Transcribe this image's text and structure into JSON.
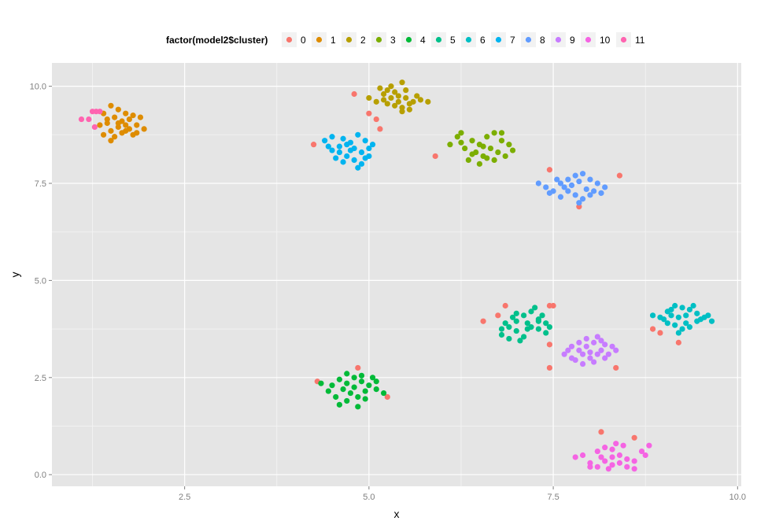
{
  "chart_data": {
    "type": "scatter",
    "xlabel": "x",
    "ylabel": "y",
    "xlim": [
      0.7,
      10.05
    ],
    "ylim": [
      -0.3,
      10.6
    ],
    "x_ticks": [
      2.5,
      5.0,
      7.5,
      10.0
    ],
    "y_ticks": [
      0.0,
      2.5,
      5.0,
      7.5,
      10.0
    ],
    "x_tick_labels": [
      "2.5",
      "5.0",
      "7.5",
      "10.0"
    ],
    "y_tick_labels": [
      "0.0",
      "2.5",
      "5.0",
      "7.5",
      "10.0"
    ],
    "grid": true,
    "legend": {
      "position": "top",
      "title": "factor(model2$cluster)",
      "entries": [
        "0",
        "1",
        "2",
        "3",
        "4",
        "5",
        "6",
        "7",
        "8",
        "9",
        "10",
        "11"
      ]
    },
    "series": [
      {
        "name": "0",
        "color": "#F8766D",
        "points": [
          [
            4.8,
            9.8
          ],
          [
            5.0,
            9.3
          ],
          [
            5.1,
            9.15
          ],
          [
            5.15,
            8.9
          ],
          [
            4.25,
            8.5
          ],
          [
            5.9,
            8.2
          ],
          [
            7.45,
            7.85
          ],
          [
            8.4,
            7.7
          ],
          [
            7.85,
            6.9
          ],
          [
            4.3,
            2.4
          ],
          [
            4.85,
            2.75
          ],
          [
            5.25,
            2.0
          ],
          [
            6.85,
            4.35
          ],
          [
            7.45,
            4.35
          ],
          [
            7.5,
            4.35
          ],
          [
            6.75,
            4.1
          ],
          [
            6.55,
            3.95
          ],
          [
            7.45,
            3.35
          ],
          [
            7.45,
            2.75
          ],
          [
            8.35,
            2.75
          ],
          [
            8.85,
            3.75
          ],
          [
            8.95,
            3.65
          ],
          [
            9.2,
            3.4
          ],
          [
            8.15,
            1.1
          ],
          [
            8.6,
            0.95
          ]
        ]
      },
      {
        "name": "1",
        "color": "#DE8C00",
        "points": [
          [
            1.5,
            9.5
          ],
          [
            1.6,
            9.4
          ],
          [
            1.4,
            9.3
          ],
          [
            1.7,
            9.3
          ],
          [
            1.8,
            9.25
          ],
          [
            1.55,
            9.2
          ],
          [
            1.65,
            9.1
          ],
          [
            1.45,
            9.05
          ],
          [
            1.85,
            9.0
          ],
          [
            1.95,
            8.9
          ],
          [
            1.5,
            8.85
          ],
          [
            1.7,
            8.85
          ],
          [
            1.6,
            8.95
          ],
          [
            1.75,
            9.15
          ],
          [
            1.4,
            8.75
          ],
          [
            1.55,
            8.7
          ],
          [
            1.8,
            8.75
          ],
          [
            1.5,
            8.6
          ],
          [
            1.65,
            8.8
          ],
          [
            1.9,
            9.2
          ],
          [
            1.35,
            9.0
          ],
          [
            1.6,
            9.05
          ],
          [
            1.7,
            9.0
          ],
          [
            1.45,
            9.15
          ],
          [
            1.75,
            8.9
          ],
          [
            1.85,
            8.8
          ]
        ]
      },
      {
        "name": "2",
        "color": "#B79F00",
        "points": [
          [
            5.15,
            9.95
          ],
          [
            5.3,
            10.0
          ],
          [
            5.45,
            10.1
          ],
          [
            5.2,
            9.8
          ],
          [
            5.35,
            9.85
          ],
          [
            5.5,
            9.7
          ],
          [
            5.6,
            9.6
          ],
          [
            5.4,
            9.6
          ],
          [
            5.25,
            9.55
          ],
          [
            5.45,
            9.45
          ],
          [
            5.55,
            9.4
          ],
          [
            5.1,
            9.6
          ],
          [
            5.3,
            9.7
          ],
          [
            5.65,
            9.75
          ],
          [
            5.8,
            9.6
          ],
          [
            5.0,
            9.7
          ],
          [
            5.5,
            9.9
          ],
          [
            5.35,
            9.5
          ],
          [
            5.2,
            9.65
          ],
          [
            5.55,
            9.55
          ],
          [
            5.7,
            9.65
          ],
          [
            5.4,
            9.75
          ],
          [
            5.45,
            9.35
          ],
          [
            5.25,
            9.9
          ]
        ]
      },
      {
        "name": "3",
        "color": "#7CAE00",
        "points": [
          [
            6.2,
            8.7
          ],
          [
            6.25,
            8.8
          ],
          [
            6.4,
            8.6
          ],
          [
            6.5,
            8.5
          ],
          [
            6.6,
            8.7
          ],
          [
            6.7,
            8.8
          ],
          [
            6.8,
            8.6
          ],
          [
            6.45,
            8.3
          ],
          [
            6.55,
            8.2
          ],
          [
            6.65,
            8.4
          ],
          [
            6.75,
            8.3
          ],
          [
            6.9,
            8.5
          ],
          [
            6.35,
            8.1
          ],
          [
            6.5,
            8.0
          ],
          [
            6.6,
            8.15
          ],
          [
            6.85,
            8.2
          ],
          [
            6.1,
            8.5
          ],
          [
            6.3,
            8.4
          ],
          [
            6.7,
            8.1
          ],
          [
            6.95,
            8.35
          ],
          [
            6.4,
            8.25
          ],
          [
            6.55,
            8.45
          ],
          [
            6.8,
            8.8
          ],
          [
            6.25,
            8.55
          ]
        ]
      },
      {
        "name": "4",
        "color": "#00BA38",
        "points": [
          [
            4.35,
            2.35
          ],
          [
            4.5,
            2.3
          ],
          [
            4.6,
            2.45
          ],
          [
            4.7,
            2.6
          ],
          [
            4.8,
            2.5
          ],
          [
            4.9,
            2.4
          ],
          [
            5.0,
            2.3
          ],
          [
            5.1,
            2.2
          ],
          [
            5.2,
            2.1
          ],
          [
            4.65,
            2.2
          ],
          [
            4.75,
            2.1
          ],
          [
            4.85,
            2.0
          ],
          [
            4.95,
            2.15
          ],
          [
            4.55,
            2.0
          ],
          [
            4.7,
            1.9
          ],
          [
            4.85,
            1.75
          ],
          [
            4.6,
            1.8
          ],
          [
            5.05,
            2.5
          ],
          [
            4.8,
            2.25
          ],
          [
            4.95,
            1.95
          ],
          [
            4.45,
            2.15
          ],
          [
            5.1,
            2.4
          ],
          [
            4.7,
            2.35
          ],
          [
            4.9,
            2.55
          ]
        ]
      },
      {
        "name": "5",
        "color": "#00C08B",
        "points": [
          [
            6.9,
            3.8
          ],
          [
            7.0,
            3.95
          ],
          [
            7.1,
            4.1
          ],
          [
            7.2,
            4.2
          ],
          [
            7.3,
            4.0
          ],
          [
            7.4,
            3.9
          ],
          [
            7.0,
            3.7
          ],
          [
            7.1,
            3.55
          ],
          [
            7.2,
            3.8
          ],
          [
            7.3,
            3.75
          ],
          [
            6.8,
            3.6
          ],
          [
            6.9,
            3.5
          ],
          [
            7.05,
            3.45
          ],
          [
            7.15,
            3.9
          ],
          [
            7.25,
            4.3
          ],
          [
            7.35,
            4.1
          ],
          [
            6.95,
            4.05
          ],
          [
            7.45,
            3.8
          ],
          [
            6.85,
            3.9
          ],
          [
            7.0,
            4.15
          ],
          [
            7.4,
            3.65
          ],
          [
            7.15,
            3.75
          ],
          [
            6.8,
            3.75
          ],
          [
            7.3,
            3.95
          ]
        ]
      },
      {
        "name": "6",
        "color": "#00BFC4",
        "points": [
          [
            8.95,
            4.05
          ],
          [
            9.05,
            4.2
          ],
          [
            9.15,
            4.35
          ],
          [
            9.25,
            4.3
          ],
          [
            9.35,
            4.25
          ],
          [
            9.45,
            4.15
          ],
          [
            9.55,
            4.05
          ],
          [
            9.65,
            3.95
          ],
          [
            9.05,
            3.9
          ],
          [
            9.15,
            3.85
          ],
          [
            9.25,
            3.75
          ],
          [
            9.35,
            3.8
          ],
          [
            9.45,
            3.95
          ],
          [
            9.2,
            4.05
          ],
          [
            9.3,
            4.1
          ],
          [
            9.1,
            4.1
          ],
          [
            9.4,
            4.35
          ],
          [
            9.6,
            4.1
          ],
          [
            8.85,
            4.1
          ],
          [
            9.2,
            3.65
          ],
          [
            9.5,
            4.0
          ],
          [
            9.0,
            4.0
          ],
          [
            9.3,
            3.9
          ],
          [
            9.1,
            4.25
          ]
        ]
      },
      {
        "name": "7",
        "color": "#00B4F0",
        "points": [
          [
            4.4,
            8.6
          ],
          [
            4.5,
            8.7
          ],
          [
            4.65,
            8.65
          ],
          [
            4.75,
            8.55
          ],
          [
            4.85,
            8.75
          ],
          [
            4.95,
            8.6
          ],
          [
            5.05,
            8.5
          ],
          [
            4.5,
            8.35
          ],
          [
            4.6,
            8.3
          ],
          [
            4.7,
            8.2
          ],
          [
            4.8,
            8.4
          ],
          [
            4.9,
            8.3
          ],
          [
            5.0,
            8.2
          ],
          [
            4.55,
            8.15
          ],
          [
            4.65,
            8.05
          ],
          [
            4.8,
            8.1
          ],
          [
            4.9,
            8.0
          ],
          [
            4.85,
            7.9
          ],
          [
            4.6,
            8.45
          ],
          [
            4.45,
            8.45
          ],
          [
            4.75,
            8.35
          ],
          [
            5.0,
            8.4
          ],
          [
            4.7,
            8.5
          ],
          [
            4.95,
            8.15
          ]
        ]
      },
      {
        "name": "8",
        "color": "#619CFF",
        "points": [
          [
            7.3,
            7.5
          ],
          [
            7.4,
            7.4
          ],
          [
            7.5,
            7.3
          ],
          [
            7.6,
            7.5
          ],
          [
            7.7,
            7.6
          ],
          [
            7.8,
            7.7
          ],
          [
            7.9,
            7.75
          ],
          [
            8.0,
            7.6
          ],
          [
            8.1,
            7.5
          ],
          [
            8.2,
            7.4
          ],
          [
            7.7,
            7.3
          ],
          [
            7.8,
            7.2
          ],
          [
            7.9,
            7.1
          ],
          [
            8.0,
            7.2
          ],
          [
            7.6,
            7.15
          ],
          [
            7.75,
            7.45
          ],
          [
            7.85,
            7.55
          ],
          [
            7.95,
            7.35
          ],
          [
            8.05,
            7.3
          ],
          [
            7.45,
            7.25
          ],
          [
            8.15,
            7.25
          ],
          [
            7.65,
            7.4
          ],
          [
            7.55,
            7.6
          ],
          [
            7.85,
            7.0
          ]
        ]
      },
      {
        "name": "9",
        "color": "#C77CFF",
        "points": [
          [
            7.65,
            3.1
          ],
          [
            7.75,
            3.0
          ],
          [
            7.85,
            3.2
          ],
          [
            7.95,
            3.3
          ],
          [
            8.05,
            3.4
          ],
          [
            8.15,
            3.2
          ],
          [
            8.25,
            3.1
          ],
          [
            8.3,
            3.3
          ],
          [
            7.8,
            2.95
          ],
          [
            7.9,
            2.85
          ],
          [
            8.0,
            3.0
          ],
          [
            8.1,
            3.1
          ],
          [
            8.2,
            3.0
          ],
          [
            7.7,
            3.2
          ],
          [
            7.95,
            3.5
          ],
          [
            8.1,
            3.55
          ],
          [
            7.85,
            3.4
          ],
          [
            8.35,
            3.2
          ],
          [
            8.0,
            3.15
          ],
          [
            8.2,
            3.35
          ],
          [
            7.75,
            3.3
          ],
          [
            8.05,
            2.9
          ],
          [
            8.15,
            3.45
          ],
          [
            7.9,
            3.1
          ]
        ]
      },
      {
        "name": "10",
        "color": "#F564E3",
        "points": [
          [
            7.8,
            0.45
          ],
          [
            7.9,
            0.5
          ],
          [
            8.0,
            0.3
          ],
          [
            8.1,
            0.2
          ],
          [
            8.2,
            0.35
          ],
          [
            8.3,
            0.45
          ],
          [
            8.4,
            0.5
          ],
          [
            8.5,
            0.4
          ],
          [
            8.6,
            0.35
          ],
          [
            8.7,
            0.6
          ],
          [
            8.1,
            0.6
          ],
          [
            8.2,
            0.7
          ],
          [
            8.3,
            0.65
          ],
          [
            8.4,
            0.3
          ],
          [
            8.5,
            0.2
          ],
          [
            8.25,
            0.15
          ],
          [
            8.0,
            0.2
          ],
          [
            8.35,
            0.8
          ],
          [
            8.45,
            0.75
          ],
          [
            8.6,
            0.15
          ],
          [
            8.75,
            0.5
          ],
          [
            8.15,
            0.45
          ],
          [
            8.3,
            0.25
          ],
          [
            8.8,
            0.75
          ]
        ]
      },
      {
        "name": "11",
        "color": "#FF64B0",
        "points": [
          [
            1.1,
            9.15
          ],
          [
            1.2,
            9.15
          ],
          [
            1.25,
            9.35
          ],
          [
            1.3,
            9.35
          ],
          [
            1.35,
            9.35
          ],
          [
            1.28,
            8.95
          ]
        ]
      }
    ]
  }
}
